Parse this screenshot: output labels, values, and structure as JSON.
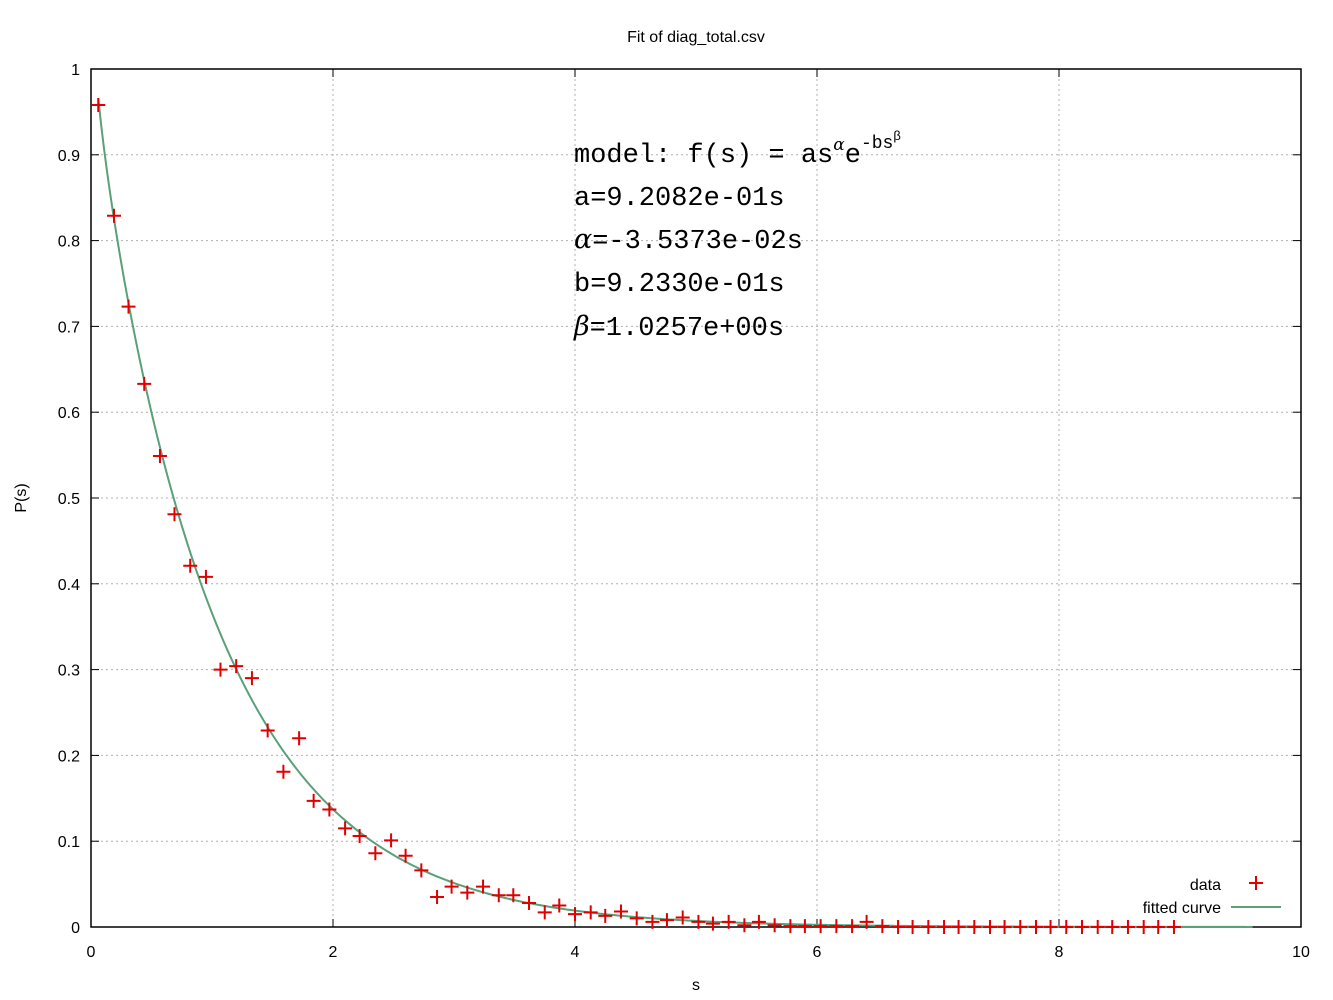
{
  "chart_data": {
    "type": "scatter",
    "title": "Fit of diag_total.csv",
    "xlabel": "s",
    "ylabel": "P(s)",
    "xlim": [
      0,
      10
    ],
    "ylim": [
      0,
      1
    ],
    "grid": true,
    "legend_position": "bottom-right",
    "x_ticks": [
      "0",
      "2",
      "4",
      "6",
      "8",
      "10"
    ],
    "y_ticks": [
      "0",
      "0.1",
      "0.2",
      "0.3",
      "0.4",
      "0.5",
      "0.6",
      "0.7",
      "0.8",
      "0.9",
      "1"
    ],
    "colors": {
      "data": "#e00000",
      "fit": "#5aa079",
      "grid": "#b0b0b0"
    },
    "series": [
      {
        "name": "data",
        "marker": "plus",
        "points": [
          [
            0.06,
            0.958
          ],
          [
            0.19,
            0.829
          ],
          [
            0.31,
            0.723
          ],
          [
            0.44,
            0.633
          ],
          [
            0.57,
            0.549
          ],
          [
            0.69,
            0.481
          ],
          [
            0.82,
            0.421
          ],
          [
            0.95,
            0.408
          ],
          [
            1.07,
            0.3
          ],
          [
            1.2,
            0.304
          ],
          [
            1.33,
            0.29
          ],
          [
            1.46,
            0.229
          ],
          [
            1.59,
            0.181
          ],
          [
            1.72,
            0.22
          ],
          [
            1.84,
            0.147
          ],
          [
            1.97,
            0.137
          ],
          [
            2.1,
            0.115
          ],
          [
            2.22,
            0.106
          ],
          [
            2.35,
            0.086
          ],
          [
            2.48,
            0.101
          ],
          [
            2.6,
            0.083
          ],
          [
            2.73,
            0.066
          ],
          [
            2.86,
            0.035
          ],
          [
            2.98,
            0.047
          ],
          [
            3.11,
            0.04
          ],
          [
            3.24,
            0.047
          ],
          [
            3.37,
            0.037
          ],
          [
            3.49,
            0.037
          ],
          [
            3.62,
            0.028
          ],
          [
            3.75,
            0.017
          ],
          [
            3.87,
            0.025
          ],
          [
            4.0,
            0.015
          ],
          [
            4.13,
            0.017
          ],
          [
            4.25,
            0.013
          ],
          [
            4.38,
            0.018
          ],
          [
            4.51,
            0.01
          ],
          [
            4.64,
            0.006
          ],
          [
            4.76,
            0.008
          ],
          [
            4.89,
            0.011
          ],
          [
            5.02,
            0.006
          ],
          [
            5.14,
            0.004
          ],
          [
            5.27,
            0.006
          ],
          [
            5.4,
            0.002
          ],
          [
            5.52,
            0.006
          ],
          [
            5.65,
            0.002
          ],
          [
            5.78,
            0.001
          ],
          [
            5.9,
            0.001
          ],
          [
            6.03,
            0.001
          ],
          [
            6.16,
            0.001
          ],
          [
            6.29,
            0.001
          ],
          [
            6.41,
            0.006
          ],
          [
            6.54,
            0.001
          ],
          [
            6.67,
            0.0
          ],
          [
            6.79,
            0.0
          ],
          [
            6.92,
            0.0
          ],
          [
            7.05,
            0.0
          ],
          [
            7.17,
            0.0
          ],
          [
            7.3,
            0.0
          ],
          [
            7.43,
            0.0
          ],
          [
            7.55,
            0.0
          ],
          [
            7.68,
            0.0
          ],
          [
            7.81,
            0.0
          ],
          [
            7.93,
            0.0
          ],
          [
            8.06,
            0.0
          ],
          [
            8.19,
            0.0
          ],
          [
            8.32,
            0.0
          ],
          [
            8.44,
            0.0
          ],
          [
            8.57,
            0.0
          ],
          [
            8.7,
            0.0
          ],
          [
            8.82,
            0.0
          ],
          [
            8.95,
            0.0
          ]
        ]
      },
      {
        "name": "fitted curve",
        "type": "line",
        "function": "a*s^alpha*exp(-b*s^beta)",
        "x_range": [
          0.06,
          9.6
        ]
      }
    ],
    "annotation": {
      "model_prefix": "model: f(s) = as",
      "model_sup_alpha": "α",
      "model_e": "e",
      "model_sup_exp": "-bs",
      "model_sup_beta": "β",
      "lines": [
        {
          "sym": "",
          "text": "a=9.2082e-01s"
        },
        {
          "sym": "α",
          "text": "=-3.5373e-02s"
        },
        {
          "sym": "",
          "text": "b=9.2330e-01s"
        },
        {
          "sym": "β",
          "text": "=1.0257e+00s"
        }
      ]
    },
    "fit_params": {
      "a": 0.92082,
      "alpha": -0.035373,
      "b": 0.9233,
      "beta": 1.0257
    }
  }
}
